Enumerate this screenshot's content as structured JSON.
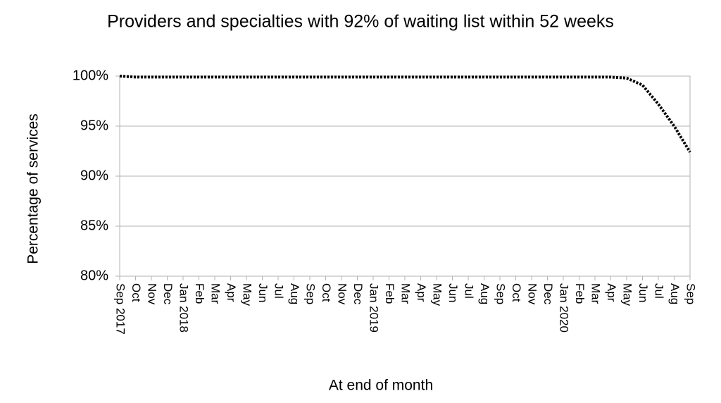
{
  "chart_data": {
    "type": "line",
    "title": "Providers and specialties with 92% of waiting list within 52 weeks",
    "y_label": "Percentage of services",
    "x_label": "At end of month",
    "categories": [
      "Sep 2017",
      "Oct",
      "Nov",
      "Dec",
      "Jan 2018",
      "Feb",
      "Mar",
      "Apr",
      "May",
      "Jun",
      "Jul",
      "Aug",
      "Sep",
      "Oct",
      "Nov",
      "Dec",
      "Jan 2019",
      "Feb",
      "Mar",
      "Apr",
      "May",
      "Jun",
      "Jul",
      "Aug",
      "Sep",
      "Oct",
      "Nov",
      "Dec",
      "Jan 2020",
      "Feb",
      "Mar",
      "Apr",
      "May",
      "Jun",
      "Jul",
      "Aug",
      "Sep"
    ],
    "values": [
      100,
      99.9,
      99.9,
      99.9,
      99.9,
      99.9,
      99.9,
      99.9,
      99.9,
      99.9,
      99.9,
      99.9,
      99.9,
      99.9,
      99.9,
      99.9,
      99.9,
      99.9,
      99.9,
      99.9,
      99.9,
      99.9,
      99.9,
      99.9,
      99.9,
      99.9,
      99.9,
      99.9,
      99.9,
      99.9,
      99.9,
      99.9,
      99.8,
      99.1,
      97.2,
      95,
      92.4
    ],
    "color": "#000000",
    "ylim": [
      80,
      100
    ],
    "yticks": [
      {
        "value": 80,
        "label": "80%"
      },
      {
        "value": 85,
        "label": "85%"
      },
      {
        "value": 90,
        "label": "90%"
      },
      {
        "value": 95,
        "label": "95%"
      },
      {
        "value": 100,
        "label": "100%"
      }
    ],
    "grid": true
  }
}
